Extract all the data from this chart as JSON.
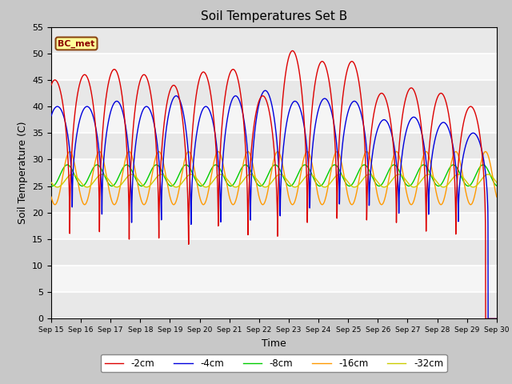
{
  "title": "Soil Temperatures Set B",
  "xlabel": "Time",
  "ylabel": "Soil Temperature (C)",
  "ylim": [
    0,
    55
  ],
  "xlim": [
    0,
    360
  ],
  "annotation": "BC_met",
  "legend_labels": [
    "-2cm",
    "-4cm",
    "-8cm",
    "-16cm",
    "-32cm"
  ],
  "legend_colors": [
    "#dd0000",
    "#0000dd",
    "#00cc00",
    "#ff9900",
    "#cccc00"
  ],
  "bg_color": "#d0d0d0",
  "plot_bg": "#e8e8e8",
  "xtick_labels": [
    "Sep 15",
    "Sep 16",
    "Sep 17",
    "Sep 18",
    "Sep 19",
    "Sep 20",
    "Sep 21",
    "Sep 22",
    "Sep 23",
    "Sep 24",
    "Sep 25",
    "Sep 26",
    "Sep 27",
    "Sep 28",
    "Sep 29",
    "Sep 30"
  ],
  "xtick_positions": [
    0,
    24,
    48,
    72,
    96,
    120,
    144,
    168,
    192,
    216,
    240,
    264,
    288,
    312,
    336,
    360
  ],
  "depth_2cm": {
    "peak_times": [
      3,
      27,
      51,
      75,
      99,
      123,
      147,
      171,
      195,
      219,
      243,
      267,
      291,
      315,
      339
    ],
    "peak_vals": [
      45,
      46,
      47,
      46,
      44,
      46.5,
      47,
      42,
      50.5,
      48.5,
      48.5,
      42.5,
      43.5,
      42.5,
      40
    ],
    "trough_times": [
      15,
      39,
      63,
      87,
      111,
      135,
      159,
      183,
      207,
      231,
      255,
      279,
      303,
      327,
      351
    ],
    "trough_vals": [
      14.5,
      14,
      12,
      12,
      10,
      13.5,
      12,
      11.5,
      13.5,
      15,
      15,
      15.5,
      14,
      14,
      13.5
    ]
  },
  "depth_4cm": {
    "peak_times": [
      5,
      29,
      53,
      77,
      101,
      125,
      149,
      173,
      197,
      221,
      245,
      269,
      293,
      317,
      341
    ],
    "peak_vals": [
      40,
      40,
      41,
      40,
      42,
      40,
      42,
      43,
      41,
      41.5,
      41,
      37.5,
      38,
      37,
      35
    ],
    "trough_times": [
      17,
      41,
      65,
      89,
      113,
      137,
      161,
      185,
      209,
      233,
      257,
      281,
      305,
      329,
      353
    ],
    "trough_vals": [
      20,
      18,
      16,
      16,
      15,
      15,
      15,
      16,
      18,
      19,
      19,
      18,
      18,
      17,
      17
    ]
  },
  "depth_8cm": {
    "base": 27,
    "amp": 2.0,
    "phase_shift": 7
  },
  "depth_16cm": {
    "base": 26.5,
    "amp": 5.0,
    "phase_shift": 9
  },
  "depth_32cm": {
    "base": 26.0,
    "amp": 1.2,
    "phase_shift": 11
  }
}
